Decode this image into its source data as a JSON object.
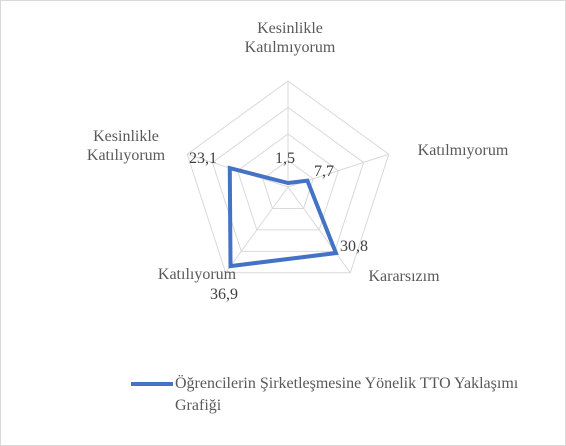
{
  "chart_data": {
    "type": "radar",
    "categories": [
      "Kesinlikle Katılmıyorum",
      "Katılmıyorum",
      "Kararsızım",
      "Katılıyorum",
      "Kesinlikle Katılıyorum"
    ],
    "series": [
      {
        "name": "Öğrencilerin Şirketleşmesine Yönelik TTO Yaklaşımı Grafiği",
        "color": "#4472c4",
        "values": [
          1.5,
          7.7,
          30.8,
          36.9,
          23.1
        ],
        "value_labels": [
          "1,5",
          "7,7",
          "30,8",
          "36,9",
          "23,1"
        ]
      }
    ],
    "ylim": [
      0,
      40
    ],
    "yticks": [
      0,
      10,
      20,
      30,
      40
    ],
    "grid": true,
    "legend": "bottom"
  }
}
